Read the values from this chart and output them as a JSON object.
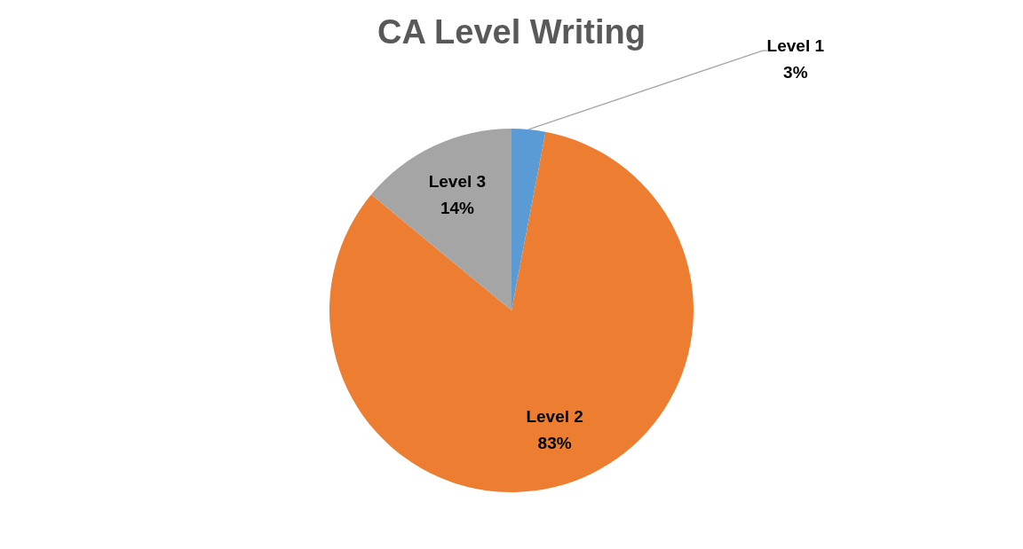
{
  "chart_data": {
    "type": "pie",
    "title": "CA Level Writing",
    "categories": [
      "Level 1",
      "Level 2",
      "Level 3"
    ],
    "values": [
      3,
      83,
      14
    ],
    "value_labels": [
      "3%",
      "83%",
      "14%"
    ],
    "colors": [
      "#5b9bd5",
      "#ed7d31",
      "#a5a5a5"
    ],
    "legend": false
  }
}
